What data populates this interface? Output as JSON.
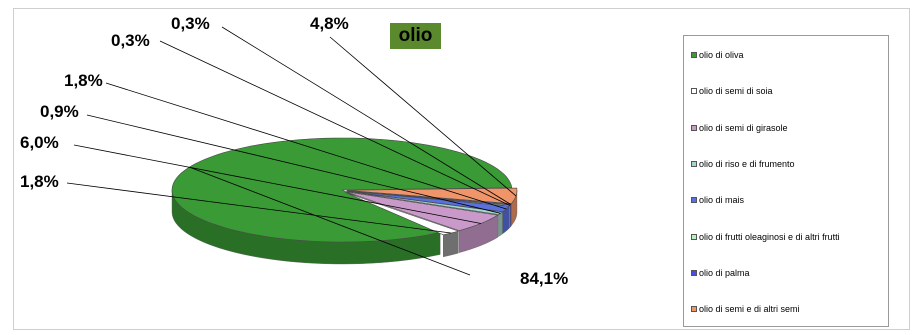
{
  "chart_data": {
    "type": "pie",
    "title": "olio",
    "slices": [
      {
        "label": "olio di oliva",
        "value": 84.1,
        "display": "84,1%",
        "color": "#3a9a35"
      },
      {
        "label": "olio di semi di soia",
        "value": 1.8,
        "display": "1,8%",
        "color": "#ffffff"
      },
      {
        "label": "olio di semi di girasole",
        "value": 6.0,
        "display": "6,0%",
        "color": "#c999c9"
      },
      {
        "label": "olio di riso e di frumento",
        "value": 0.9,
        "display": "0,9%",
        "color": "#9fd6cf"
      },
      {
        "label": "olio di mais",
        "value": 1.8,
        "display": "1,8%",
        "color": "#5a6fe0"
      },
      {
        "label": "olio di frutti oleaginosi e di altri frutti",
        "value": 0.3,
        "display": "0,3%",
        "color": "#b8f0c6"
      },
      {
        "label": "olio di palma",
        "value": 0.3,
        "display": "0,3%",
        "color": "#4a4ee0"
      },
      {
        "label": "olio di semi e di altri semi",
        "value": 4.8,
        "display": "4,8%",
        "color": "#f0956a"
      }
    ],
    "legend_position": "right"
  }
}
